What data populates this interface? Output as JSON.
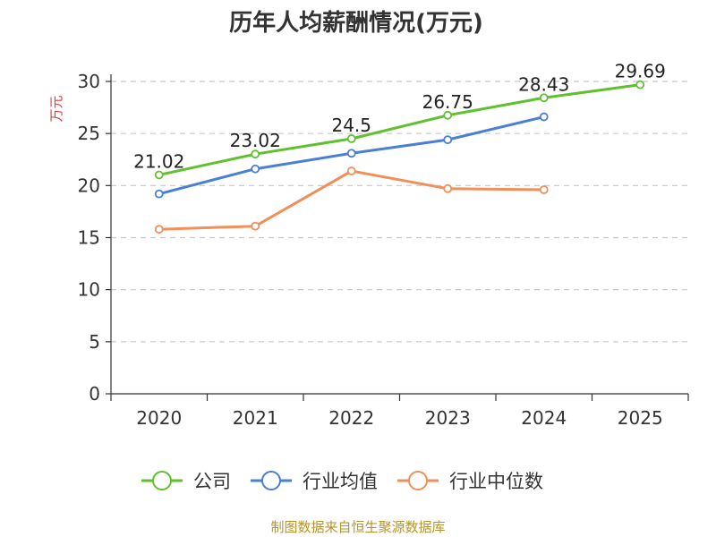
{
  "chart_data": {
    "type": "line",
    "title": "历年人均薪酬情况(万元)",
    "ylabel": "万元",
    "xlabel": "",
    "categories": [
      "2020",
      "2021",
      "2022",
      "2023",
      "2024",
      "2025"
    ],
    "ylim": [
      0,
      30
    ],
    "yticks": [
      0,
      5,
      10,
      15,
      20,
      25,
      30
    ],
    "grid": true,
    "legend_position": "bottom",
    "series": [
      {
        "name": "公司",
        "color": "#5fc12f",
        "values": [
          21.02,
          23.02,
          24.5,
          26.75,
          28.43,
          29.69
        ],
        "show_labels": true,
        "labels": [
          "21.02",
          "23.02",
          "24.5",
          "26.75",
          "28.43",
          "29.69"
        ]
      },
      {
        "name": "行业均值",
        "color": "#4a7fd6",
        "values": [
          19.2,
          21.6,
          23.1,
          24.4,
          26.6,
          null
        ],
        "show_labels": false
      },
      {
        "name": "行业中位数",
        "color": "#f28e5a",
        "values": [
          15.8,
          16.1,
          21.4,
          19.7,
          19.6,
          null
        ],
        "show_labels": false
      }
    ]
  },
  "source": "制图数据来自恒生聚源数据库"
}
